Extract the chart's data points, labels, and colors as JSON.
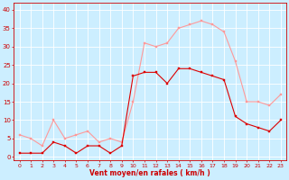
{
  "hours": [
    0,
    1,
    2,
    3,
    4,
    5,
    6,
    7,
    8,
    9,
    10,
    11,
    12,
    13,
    14,
    15,
    16,
    17,
    18,
    19,
    20,
    21,
    22,
    23
  ],
  "wind_mean": [
    1,
    1,
    1,
    4,
    3,
    1,
    3,
    3,
    1,
    3,
    22,
    23,
    23,
    20,
    24,
    24,
    23,
    22,
    21,
    11,
    9,
    8,
    7,
    10
  ],
  "wind_gust": [
    6,
    5,
    3,
    10,
    5,
    6,
    7,
    4,
    5,
    4,
    15,
    31,
    30,
    31,
    35,
    36,
    37,
    36,
    34,
    26,
    15,
    15,
    14,
    17
  ],
  "bg_color": "#cceeff",
  "grid_color": "#ffffff",
  "mean_color": "#dd0000",
  "gust_color": "#ff9999",
  "xlabel": "Vent moyen/en rafales ( km/h )",
  "xlabel_color": "#cc0000",
  "tick_color": "#cc0000",
  "ylabel_ticks": [
    0,
    5,
    10,
    15,
    20,
    25,
    30,
    35,
    40
  ],
  "ylim": [
    -1,
    42
  ],
  "xlim": [
    -0.5,
    23.5
  ]
}
